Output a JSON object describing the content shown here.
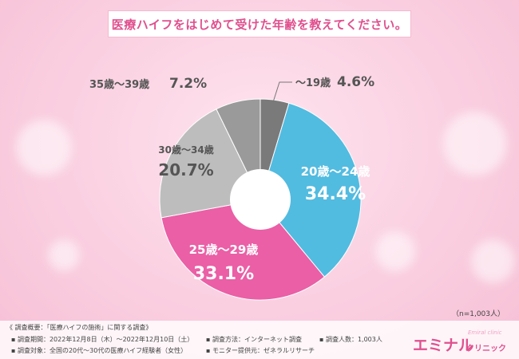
{
  "question": "医療ハイフをはじめて受けた年齢を教えてください。",
  "chart_data": {
    "type": "pie",
    "title": "医療ハイフをはじめて受けた年齢を教えてください。",
    "slices": [
      {
        "label": "〜19歳",
        "value": 4.6,
        "display": "4.6%",
        "color": "#7a7a7a"
      },
      {
        "label": "20歳〜24歳",
        "value": 34.4,
        "display": "34.4%",
        "color": "#52bbe0"
      },
      {
        "label": "25歳〜29歳",
        "value": 33.1,
        "display": "33.1%",
        "color": "#ea5fa6"
      },
      {
        "label": "30歳〜34歳",
        "value": 20.7,
        "display": "20.7%",
        "color": "#bdbdbd"
      },
      {
        "label": "35歳〜39歳",
        "value": 7.2,
        "display": "7.2%",
        "color": "#9a9a9a"
      }
    ]
  },
  "sample_size": "（n=1,003人）",
  "survey": {
    "heading": "《 調査概要：「医療ハイフの施術」に関する調査》",
    "period": "▪ 調査期間：2022年12月8日（木）〜2022年12月10日（土）",
    "target": "▪ 調査対象：全国の20代〜30代の医療ハイフ経験者（女性）",
    "method": "▪ 調査方法：インターネット調査",
    "provider": "▪ モニター提供元：ゼネラルリサーチ",
    "count": "▪ 調査人数：1,003人"
  },
  "logo": {
    "main": "エミナル",
    "sub": "クリニック",
    "script": "Emiral clinic"
  }
}
